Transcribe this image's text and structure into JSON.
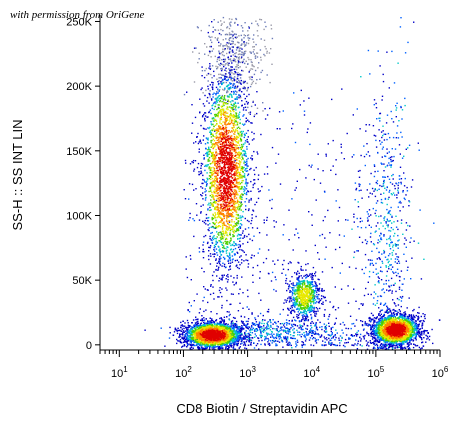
{
  "credit": "with permission from OriGene",
  "chart_data": {
    "type": "scatter",
    "subtype": "flow-cytometry-density-dot-plot",
    "xlabel": "CD8 Biotin / Streptavidin APC",
    "ylabel": "SS-H :: SS INT LIN",
    "xscale": "log",
    "xlim": [
      5,
      1000000
    ],
    "ylim": [
      -4000,
      255000
    ],
    "x_ticks": [
      {
        "value": 10,
        "base": "10",
        "exp": "1"
      },
      {
        "value": 100,
        "base": "10",
        "exp": "2"
      },
      {
        "value": 1000,
        "base": "10",
        "exp": "3"
      },
      {
        "value": 10000,
        "base": "10",
        "exp": "4"
      },
      {
        "value": 100000,
        "base": "10",
        "exp": "5"
      },
      {
        "value": 1000000,
        "base": "10",
        "exp": "6"
      }
    ],
    "y_ticks": [
      {
        "value": 0,
        "label": "0"
      },
      {
        "value": 50000,
        "label": "50K"
      },
      {
        "value": 100000,
        "label": "100K"
      },
      {
        "value": 150000,
        "label": "150K"
      },
      {
        "value": 200000,
        "label": "200K"
      },
      {
        "value": 250000,
        "label": "250K"
      }
    ],
    "color_scale": [
      "#0000c8",
      "#0060ff",
      "#00c8c8",
      "#50d000",
      "#e8e800",
      "#ff8000",
      "#e00000"
    ],
    "populations": [
      {
        "x_center": 450,
        "y_center": 135000,
        "x_spread_decades": 0.18,
        "y_spread": 38000,
        "peak_density": "high"
      },
      {
        "x_center": 280,
        "y_center": 8000,
        "x_spread_decades": 0.22,
        "y_spread": 5000,
        "peak_density": "high"
      },
      {
        "x_center": 200000,
        "y_center": 12000,
        "x_spread_decades": 0.18,
        "y_spread": 6000,
        "peak_density": "high"
      },
      {
        "x_center": 7500,
        "y_center": 38000,
        "x_spread_decades": 0.12,
        "y_spread": 9000,
        "peak_density": "medium"
      },
      {
        "x_center": 2500,
        "y_center": 10000,
        "x_spread_decades": 0.7,
        "y_spread": 5000,
        "peak_density": "low"
      },
      {
        "x_center": 150000,
        "y_center": 90000,
        "x_spread_decades": 0.2,
        "y_spread": 55000,
        "peak_density": "low"
      },
      {
        "x_center": 600,
        "y_center": 225000,
        "x_spread_decades": 0.25,
        "y_spread": 18000,
        "peak_density": "low-grey"
      }
    ]
  }
}
